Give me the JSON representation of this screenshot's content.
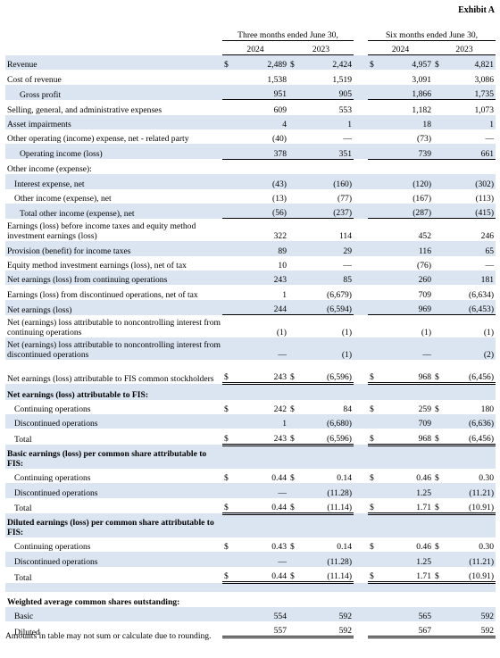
{
  "exhibit": "Exhibit A",
  "headers": {
    "three_months": "Three months ended June 30,",
    "six_months": "Six months ended June 30,",
    "y2024": "2024",
    "y2023": "2023"
  },
  "rows": [
    {
      "label": "Revenue",
      "v": [
        "2,489",
        "2,424",
        "4,957",
        "4,821"
      ]
    },
    {
      "label": "Cost of revenue",
      "v": [
        "1,538",
        "1,519",
        "3,091",
        "3,086"
      ]
    },
    {
      "label": "Gross profit",
      "v": [
        "951",
        "905",
        "1,866",
        "1,735"
      ]
    },
    {
      "label": "Selling, general, and administrative expenses",
      "v": [
        "609",
        "553",
        "1,182",
        "1,073"
      ]
    },
    {
      "label": "Asset impairments",
      "v": [
        "4",
        "1",
        "18",
        "1"
      ]
    },
    {
      "label": "Other operating (income) expense, net - related party",
      "v": [
        "(40)",
        "—",
        "(73)",
        "—"
      ]
    },
    {
      "label": "Operating income (loss)",
      "v": [
        "378",
        "351",
        "739",
        "661"
      ]
    },
    {
      "label": "Other income (expense):",
      "v": [
        "",
        "",
        "",
        ""
      ]
    },
    {
      "label": "Interest expense, net",
      "v": [
        "(43)",
        "(160)",
        "(120)",
        "(302)"
      ]
    },
    {
      "label": "Other income (expense), net",
      "v": [
        "(13)",
        "(77)",
        "(167)",
        "(113)"
      ]
    },
    {
      "label": "Total other income (expense), net",
      "v": [
        "(56)",
        "(237)",
        "(287)",
        "(415)"
      ]
    },
    {
      "label": "Earnings (loss) before income taxes and equity method investment earnings (loss)",
      "v": [
        "322",
        "114",
        "452",
        "246"
      ]
    },
    {
      "label": "Provision (benefit) for income taxes",
      "v": [
        "89",
        "29",
        "116",
        "65"
      ]
    },
    {
      "label": "Equity method investment earnings (loss), net of tax",
      "v": [
        "10",
        "—",
        "(76)",
        "—"
      ]
    },
    {
      "label": "Net earnings (loss) from continuing operations",
      "v": [
        "243",
        "85",
        "260",
        "181"
      ]
    },
    {
      "label": "Earnings (loss) from discontinued operations, net of tax",
      "v": [
        "1",
        "(6,679)",
        "709",
        "(6,634)"
      ]
    },
    {
      "label": "Net earnings (loss)",
      "v": [
        "244",
        "(6,594)",
        "969",
        "(6,453)"
      ]
    },
    {
      "label": "Net (earnings) loss attributable to noncontrolling interest from continuing operations",
      "v": [
        "(1)",
        "(1)",
        "(1)",
        "(1)"
      ]
    },
    {
      "label": "Net (earnings) loss attributable to noncontrolling interest from discontinued operations",
      "v": [
        "—",
        "(1)",
        "—",
        "(2)"
      ]
    },
    {
      "label": "Net earnings (loss) attributable to FIS common stockholders",
      "v": [
        "243",
        "(6,596)",
        "968",
        "(6,456)"
      ]
    },
    {
      "label": "Net earnings (loss) attributable to FIS:",
      "v": [
        "",
        "",
        "",
        ""
      ]
    },
    {
      "label": "Continuing operations",
      "v": [
        "242",
        "84",
        "259",
        "180"
      ]
    },
    {
      "label": "Discontinued operations",
      "v": [
        "1",
        "(6,680)",
        "709",
        "(6,636)"
      ]
    },
    {
      "label": "Total",
      "v": [
        "243",
        "(6,596)",
        "968",
        "(6,456)"
      ]
    },
    {
      "label": "Basic earnings (loss) per common share attributable to FIS:",
      "v": [
        "",
        "",
        "",
        ""
      ]
    },
    {
      "label": "Continuing operations",
      "v": [
        "0.44",
        "0.14",
        "0.46",
        "0.30"
      ]
    },
    {
      "label": "Discontinued operations",
      "v": [
        "—",
        "(11.28)",
        "1.25",
        "(11.21)"
      ]
    },
    {
      "label": "Total",
      "v": [
        "0.44",
        "(11.14)",
        "1.71",
        "(10.91)"
      ]
    },
    {
      "label": "Diluted earnings (loss) per common share attributable to FIS:",
      "v": [
        "",
        "",
        "",
        ""
      ]
    },
    {
      "label": "Continuing operations",
      "v": [
        "0.43",
        "0.14",
        "0.46",
        "0.30"
      ]
    },
    {
      "label": "Discontinued operations",
      "v": [
        "—",
        "(11.28)",
        "1.25",
        "(11.21)"
      ]
    },
    {
      "label": "Total",
      "v": [
        "0.44",
        "(11.14)",
        "1.71",
        "(10.91)"
      ]
    },
    {
      "label": "",
      "v": [
        "",
        "",
        "",
        ""
      ]
    },
    {
      "label": "Weighted average common shares outstanding:",
      "v": [
        "",
        "",
        "",
        ""
      ]
    },
    {
      "label": "Basic",
      "v": [
        "554",
        "592",
        "565",
        "592"
      ]
    },
    {
      "label": "Diluted",
      "v": [
        "557",
        "592",
        "567",
        "592"
      ]
    }
  ],
  "dollar_sign": "$",
  "footnote": "Amounts in table may not sum or calculate due to rounding."
}
